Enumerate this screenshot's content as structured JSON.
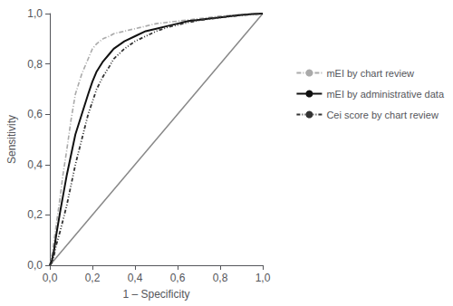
{
  "chart_data": {
    "type": "line",
    "xlabel": "1 – Specificity",
    "ylabel": "Sensitivity",
    "xlim": [
      0.0,
      1.0
    ],
    "ylim": [
      0.0,
      1.0
    ],
    "xticks": [
      {
        "value": 0.0,
        "label": "0,0"
      },
      {
        "value": 0.2,
        "label": "0,2"
      },
      {
        "value": 0.4,
        "label": "0,4"
      },
      {
        "value": 0.6,
        "label": "0,6"
      },
      {
        "value": 0.8,
        "label": "0,8"
      },
      {
        "value": 1.0,
        "label": "1,0"
      }
    ],
    "yticks": [
      {
        "value": 0.0,
        "label": "0,0"
      },
      {
        "value": 0.2,
        "label": "0,2"
      },
      {
        "value": 0.4,
        "label": "0,4"
      },
      {
        "value": 0.6,
        "label": "0,6"
      },
      {
        "value": 0.8,
        "label": "0,8"
      },
      {
        "value": 1.0,
        "label": "1,0"
      }
    ],
    "grid": false,
    "legend": "right",
    "series": [
      {
        "color": "#888888",
        "line_style": "solid",
        "x": [
          0,
          1
        ],
        "values": [
          0,
          1
        ]
      },
      {
        "name": "mEI by chart review",
        "color": "#aaaaaa",
        "line_style": "dashdot",
        "x": [
          0.0,
          0.01,
          0.02,
          0.03,
          0.04,
          0.05,
          0.06,
          0.08,
          0.1,
          0.12,
          0.15,
          0.18,
          0.2,
          0.22,
          0.25,
          0.28,
          0.3,
          0.35,
          0.4,
          0.45,
          0.5,
          0.55,
          0.6,
          0.65,
          0.7,
          0.75,
          0.8,
          0.85,
          0.9,
          0.95,
          1.0
        ],
        "values": [
          0.0,
          0.04,
          0.1,
          0.16,
          0.22,
          0.28,
          0.35,
          0.46,
          0.58,
          0.68,
          0.76,
          0.82,
          0.86,
          0.88,
          0.9,
          0.91,
          0.92,
          0.93,
          0.94,
          0.95,
          0.96,
          0.965,
          0.97,
          0.975,
          0.98,
          0.985,
          0.99,
          0.993,
          0.996,
          0.998,
          1.0
        ]
      },
      {
        "name": "mEI by administrative data",
        "color": "#111111",
        "line_style": "solid",
        "x": [
          0.0,
          0.01,
          0.02,
          0.03,
          0.05,
          0.08,
          0.1,
          0.12,
          0.15,
          0.18,
          0.2,
          0.22,
          0.25,
          0.28,
          0.3,
          0.35,
          0.4,
          0.45,
          0.5,
          0.55,
          0.6,
          0.65,
          0.7,
          0.75,
          0.8,
          0.85,
          0.9,
          0.95,
          1.0
        ],
        "values": [
          0.0,
          0.02,
          0.06,
          0.12,
          0.22,
          0.36,
          0.44,
          0.52,
          0.6,
          0.68,
          0.73,
          0.77,
          0.81,
          0.84,
          0.86,
          0.89,
          0.91,
          0.93,
          0.94,
          0.95,
          0.96,
          0.97,
          0.975,
          0.98,
          0.985,
          0.99,
          0.995,
          0.998,
          1.0
        ]
      },
      {
        "name": "Cei score by chart review",
        "color": "#333333",
        "line_style": "dashed",
        "x": [
          0.0,
          0.01,
          0.02,
          0.03,
          0.05,
          0.08,
          0.1,
          0.12,
          0.15,
          0.18,
          0.2,
          0.22,
          0.25,
          0.28,
          0.3,
          0.35,
          0.4,
          0.45,
          0.5,
          0.55,
          0.6,
          0.65,
          0.7,
          0.75,
          0.8,
          0.85,
          0.9,
          0.95,
          1.0
        ],
        "values": [
          0.0,
          0.01,
          0.04,
          0.08,
          0.14,
          0.24,
          0.32,
          0.4,
          0.5,
          0.6,
          0.65,
          0.7,
          0.75,
          0.79,
          0.82,
          0.86,
          0.89,
          0.91,
          0.93,
          0.945,
          0.955,
          0.965,
          0.973,
          0.979,
          0.984,
          0.989,
          0.993,
          0.997,
          1.0
        ]
      }
    ]
  }
}
